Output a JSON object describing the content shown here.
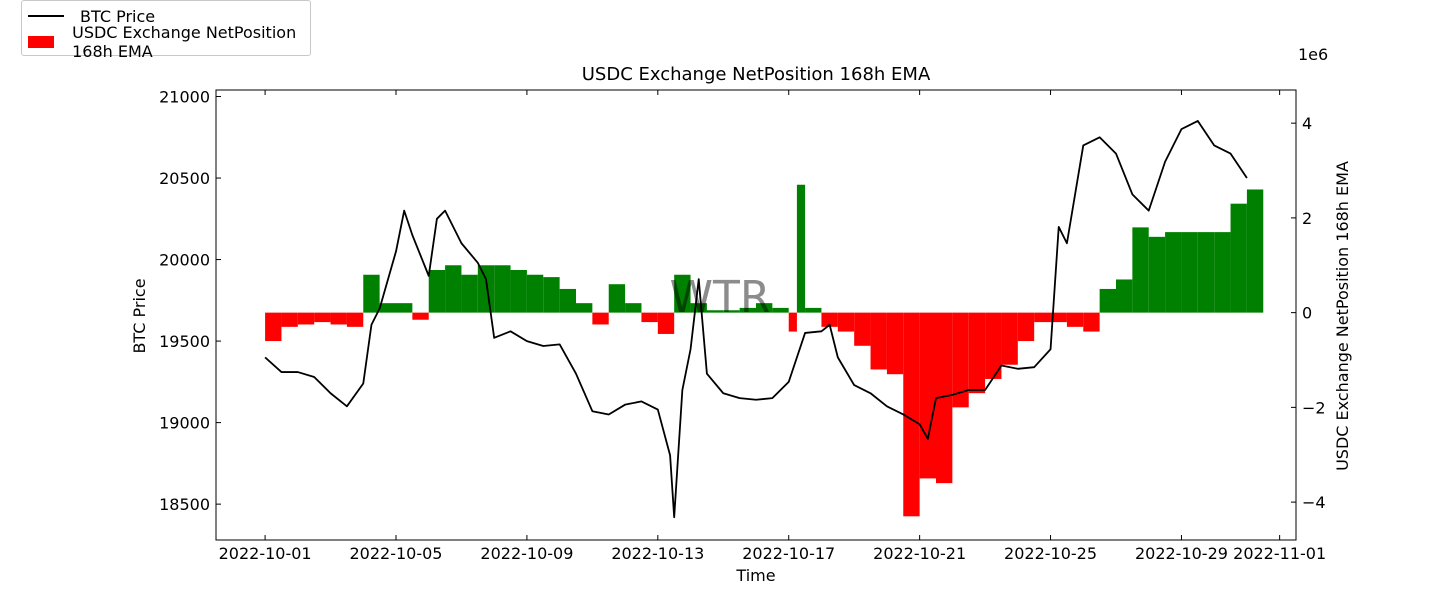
{
  "chart_data": {
    "type": "bar+line",
    "title": "USDC Exchange NetPosition 168h EMA",
    "xlabel": "Time",
    "ylabel_left": "BTC Price",
    "ylabel_right": "USDC Exchange NetPosition 168h EMA",
    "right_axis_multiplier": "1e6",
    "watermark": "WTR",
    "x_range": [
      "2022-10-01",
      "2022-11-01"
    ],
    "x_ticks": [
      "2022-10-01",
      "2022-10-05",
      "2022-10-09",
      "2022-10-13",
      "2022-10-17",
      "2022-10-21",
      "2022-10-25",
      "2022-10-29",
      "2022-11-01"
    ],
    "ylim_left": [
      18280,
      21040
    ],
    "yticks_left": [
      18500,
      19000,
      19500,
      20000,
      20500,
      21000
    ],
    "ylim_right": [
      -4.8,
      4.7
    ],
    "yticks_right": [
      -4,
      -2,
      0,
      2,
      4
    ],
    "legend": [
      {
        "label": "BTC Price",
        "color": "#000000",
        "kind": "line"
      },
      {
        "label": "USDC Exchange NetPosition 168h EMA",
        "color": "#ff0000",
        "kind": "bar"
      }
    ],
    "colors": {
      "positive": "#008000",
      "negative": "#ff0000",
      "price": "#000000"
    },
    "series": [
      {
        "name": "BTC Price",
        "points": [
          [
            "2022-10-01 00:00",
            19400
          ],
          [
            "2022-10-01 12:00",
            19310
          ],
          [
            "2022-10-02 00:00",
            19310
          ],
          [
            "2022-10-02 12:00",
            19280
          ],
          [
            "2022-10-03 00:00",
            19180
          ],
          [
            "2022-10-03 12:00",
            19100
          ],
          [
            "2022-10-04 00:00",
            19240
          ],
          [
            "2022-10-04 06:00",
            19600
          ],
          [
            "2022-10-04 12:00",
            19700
          ],
          [
            "2022-10-05 00:00",
            20050
          ],
          [
            "2022-10-05 06:00",
            20300
          ],
          [
            "2022-10-05 12:00",
            20150
          ],
          [
            "2022-10-06 00:00",
            19900
          ],
          [
            "2022-10-06 06:00",
            20250
          ],
          [
            "2022-10-06 12:00",
            20300
          ],
          [
            "2022-10-07 00:00",
            20100
          ],
          [
            "2022-10-07 12:00",
            19980
          ],
          [
            "2022-10-07 18:00",
            19880
          ],
          [
            "2022-10-08 00:00",
            19520
          ],
          [
            "2022-10-08 12:00",
            19560
          ],
          [
            "2022-10-09 00:00",
            19500
          ],
          [
            "2022-10-09 12:00",
            19470
          ],
          [
            "2022-10-10 00:00",
            19480
          ],
          [
            "2022-10-10 12:00",
            19300
          ],
          [
            "2022-10-11 00:00",
            19070
          ],
          [
            "2022-10-11 12:00",
            19050
          ],
          [
            "2022-10-12 00:00",
            19110
          ],
          [
            "2022-10-12 12:00",
            19130
          ],
          [
            "2022-10-13 00:00",
            19080
          ],
          [
            "2022-10-13 09:00",
            18800
          ],
          [
            "2022-10-13 12:00",
            18420
          ],
          [
            "2022-10-13 18:00",
            19200
          ],
          [
            "2022-10-14 00:00",
            19450
          ],
          [
            "2022-10-14 06:00",
            19880
          ],
          [
            "2022-10-14 12:00",
            19300
          ],
          [
            "2022-10-15 00:00",
            19180
          ],
          [
            "2022-10-15 12:00",
            19150
          ],
          [
            "2022-10-16 00:00",
            19140
          ],
          [
            "2022-10-16 12:00",
            19150
          ],
          [
            "2022-10-17 00:00",
            19250
          ],
          [
            "2022-10-17 12:00",
            19550
          ],
          [
            "2022-10-18 00:00",
            19560
          ],
          [
            "2022-10-18 06:00",
            19600
          ],
          [
            "2022-10-18 12:00",
            19400
          ],
          [
            "2022-10-19 00:00",
            19230
          ],
          [
            "2022-10-19 12:00",
            19180
          ],
          [
            "2022-10-20 00:00",
            19100
          ],
          [
            "2022-10-20 12:00",
            19050
          ],
          [
            "2022-10-21 00:00",
            18990
          ],
          [
            "2022-10-21 06:00",
            18900
          ],
          [
            "2022-10-21 12:00",
            19150
          ],
          [
            "2022-10-22 00:00",
            19170
          ],
          [
            "2022-10-22 12:00",
            19200
          ],
          [
            "2022-10-23 00:00",
            19200
          ],
          [
            "2022-10-23 12:00",
            19350
          ],
          [
            "2022-10-24 00:00",
            19330
          ],
          [
            "2022-10-24 12:00",
            19340
          ],
          [
            "2022-10-25 00:00",
            19450
          ],
          [
            "2022-10-25 06:00",
            20200
          ],
          [
            "2022-10-25 12:00",
            20100
          ],
          [
            "2022-10-26 00:00",
            20700
          ],
          [
            "2022-10-26 12:00",
            20750
          ],
          [
            "2022-10-27 00:00",
            20650
          ],
          [
            "2022-10-27 12:00",
            20400
          ],
          [
            "2022-10-28 00:00",
            20300
          ],
          [
            "2022-10-28 12:00",
            20600
          ],
          [
            "2022-10-29 00:00",
            20800
          ],
          [
            "2022-10-29 12:00",
            20850
          ],
          [
            "2022-10-30 00:00",
            20700
          ],
          [
            "2022-10-30 12:00",
            20650
          ],
          [
            "2022-10-31 00:00",
            20500
          ]
        ]
      },
      {
        "name": "USDC Exchange NetPosition 168h EMA",
        "unit_multiplier": 1000000,
        "points": [
          [
            "2022-10-01 00:00",
            -0.6
          ],
          [
            "2022-10-01 12:00",
            -0.3
          ],
          [
            "2022-10-02 00:00",
            -0.25
          ],
          [
            "2022-10-02 12:00",
            -0.2
          ],
          [
            "2022-10-03 00:00",
            -0.25
          ],
          [
            "2022-10-03 12:00",
            -0.3
          ],
          [
            "2022-10-04 00:00",
            0.8
          ],
          [
            "2022-10-04 12:00",
            0.2
          ],
          [
            "2022-10-05 00:00",
            0.2
          ],
          [
            "2022-10-05 12:00",
            -0.15
          ],
          [
            "2022-10-06 00:00",
            0.9
          ],
          [
            "2022-10-06 12:00",
            1.0
          ],
          [
            "2022-10-07 00:00",
            0.8
          ],
          [
            "2022-10-07 12:00",
            1.0
          ],
          [
            "2022-10-08 00:00",
            1.0
          ],
          [
            "2022-10-08 12:00",
            0.9
          ],
          [
            "2022-10-09 00:00",
            0.8
          ],
          [
            "2022-10-09 12:00",
            0.75
          ],
          [
            "2022-10-10 00:00",
            0.5
          ],
          [
            "2022-10-10 12:00",
            0.2
          ],
          [
            "2022-10-11 00:00",
            -0.25
          ],
          [
            "2022-10-11 12:00",
            0.6
          ],
          [
            "2022-10-12 00:00",
            0.2
          ],
          [
            "2022-10-12 12:00",
            -0.2
          ],
          [
            "2022-10-13 00:00",
            -0.45
          ],
          [
            "2022-10-13 12:00",
            0.8
          ],
          [
            "2022-10-14 00:00",
            0.2
          ],
          [
            "2022-10-14 12:00",
            0.05
          ],
          [
            "2022-10-15 00:00",
            0.05
          ],
          [
            "2022-10-15 12:00",
            0.1
          ],
          [
            "2022-10-16 00:00",
            0.2
          ],
          [
            "2022-10-16 12:00",
            0.1
          ],
          [
            "2022-10-17 00:00",
            -0.4
          ],
          [
            "2022-10-17 06:00",
            2.7
          ],
          [
            "2022-10-17 12:00",
            0.1
          ],
          [
            "2022-10-18 00:00",
            -0.3
          ],
          [
            "2022-10-18 12:00",
            -0.4
          ],
          [
            "2022-10-19 00:00",
            -0.7
          ],
          [
            "2022-10-19 12:00",
            -1.2
          ],
          [
            "2022-10-20 00:00",
            -1.3
          ],
          [
            "2022-10-20 12:00",
            -4.3
          ],
          [
            "2022-10-21 00:00",
            -3.5
          ],
          [
            "2022-10-21 12:00",
            -3.6
          ],
          [
            "2022-10-22 00:00",
            -2.0
          ],
          [
            "2022-10-22 12:00",
            -1.7
          ],
          [
            "2022-10-23 00:00",
            -1.4
          ],
          [
            "2022-10-23 12:00",
            -1.1
          ],
          [
            "2022-10-24 00:00",
            -0.6
          ],
          [
            "2022-10-24 12:00",
            -0.2
          ],
          [
            "2022-10-25 00:00",
            -0.2
          ],
          [
            "2022-10-25 12:00",
            -0.3
          ],
          [
            "2022-10-26 00:00",
            -0.4
          ],
          [
            "2022-10-26 12:00",
            0.5
          ],
          [
            "2022-10-27 00:00",
            0.7
          ],
          [
            "2022-10-27 12:00",
            1.8
          ],
          [
            "2022-10-28 00:00",
            1.6
          ],
          [
            "2022-10-28 12:00",
            1.7
          ],
          [
            "2022-10-29 00:00",
            1.7
          ],
          [
            "2022-10-29 12:00",
            1.7
          ],
          [
            "2022-10-30 00:00",
            1.7
          ],
          [
            "2022-10-30 12:00",
            2.3
          ],
          [
            "2022-10-31 00:00",
            2.6
          ]
        ]
      }
    ]
  }
}
